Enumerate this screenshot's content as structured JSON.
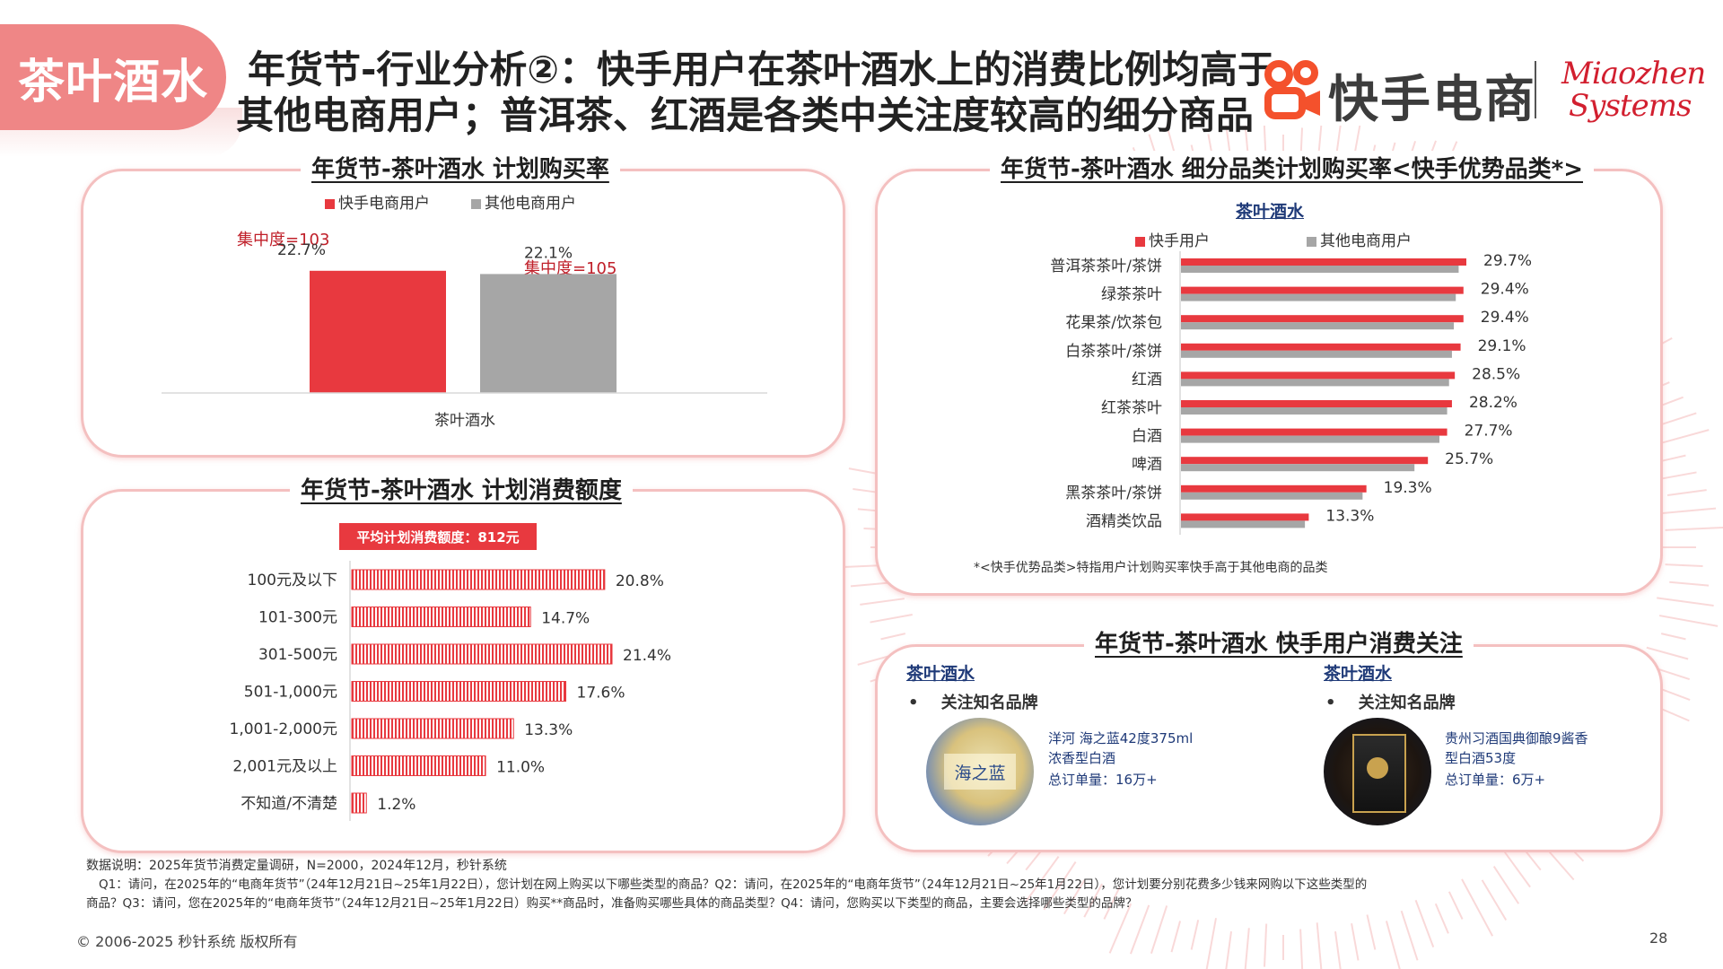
{
  "tag": "茶叶酒水",
  "title": {
    "line1": "年货节-行业分析②：快手用户在茶叶酒水上的消费比例均高于",
    "line2": "其他电商用户；普洱茶、红酒是各类中关注度较高的细分商品"
  },
  "logos": {
    "kuaishou": "快手电商",
    "miaozhen_line1": "Miaozhen",
    "miaozhen_line2": "Systems"
  },
  "panel1": {
    "title": "年货节-茶叶酒水 计划购买率",
    "legend": [
      "快手电商用户",
      "其他电商用户"
    ],
    "concentration_ks": "集中度=103",
    "concentration_other": "集中度=105"
  },
  "panel2": {
    "title": "年货节-茶叶酒水 计划消费额度",
    "avg_badge": "平均计划消费额度：812元"
  },
  "panel3": {
    "title": "年货节-茶叶酒水 细分品类计划购买率<快手优势品类*>",
    "subtitle": "茶叶酒水",
    "legend": [
      "快手用户",
      "其他电商用户"
    ],
    "footnote": "*<快手优势品类>特指用户计划购买率快手高于其他电商的品类"
  },
  "panel4": {
    "title": "年货节-茶叶酒水 快手用户消费关注",
    "left": {
      "category": "茶叶酒水",
      "bullet": "关注知名品牌",
      "product_line1": "洋河 海之蓝42度375ml",
      "product_line2": "浓香型白酒",
      "orders": "总订单量：16万+",
      "bottle_text": "海之蓝"
    },
    "right": {
      "category": "茶叶酒水",
      "bullet": "关注知名品牌",
      "product_line1": "贵州习酒国典御酿9酱香",
      "product_line2": "型白酒53度",
      "orders": "总订单量：6万+"
    }
  },
  "notes": {
    "line1": "数据说明：2025年货节消费定量调研，N=2000，2024年12月，秒针系统",
    "line2": "Q1：请问，在2025年的“电商年货节”（24年12月21日~25年1月22日），您计划在网上购买以下哪些类型的商品？Q2：请问，在2025年的“电商年货节”（24年12月21日~25年1月22日），您计划要分别花费多少钱来网购以下这些类型的",
    "line3": "商品？Q3：请问，您在2025年的“电商年货节”（24年12月21日~25年1月22日）购买**商品时，准备购买哪些具体的商品类型？Q4：请问，您购买以下类型的商品，主要会选择哪些类型的品牌？"
  },
  "footer": {
    "copyright": "© 2006-2025 秒针系统 版权所有",
    "page": "28"
  },
  "colors": {
    "red": "#e8393f",
    "gray": "#a6a6a6",
    "tag": "#ef8686",
    "border": "#f4c0c0"
  },
  "chart_data": [
    {
      "type": "bar",
      "title": "年货节-茶叶酒水 计划购买率",
      "categories": [
        "茶叶酒水"
      ],
      "series": [
        {
          "name": "快手电商用户",
          "values": [
            22.7
          ]
        },
        {
          "name": "其他电商用户",
          "values": [
            22.1
          ]
        }
      ],
      "value_labels": [
        "22.7%",
        "22.1%"
      ],
      "annotations": [
        "集中度=103",
        "集中度=105"
      ]
    },
    {
      "type": "bar",
      "title": "年货节-茶叶酒水 计划消费额度",
      "orientation": "horizontal",
      "categories": [
        "100元及以下",
        "101-300元",
        "301-500元",
        "501-1,000元",
        "1,001-2,000元",
        "2,001元及以上",
        "不知道/不清楚"
      ],
      "values": [
        20.8,
        14.7,
        21.4,
        17.6,
        13.3,
        11.0,
        1.2
      ],
      "value_labels": [
        "20.8%",
        "14.7%",
        "21.4%",
        "17.6%",
        "13.3%",
        "11.0%",
        "1.2%"
      ]
    },
    {
      "type": "bar",
      "title": "年货节-茶叶酒水 细分品类计划购买率<快手优势品类*>",
      "orientation": "horizontal",
      "categories": [
        "普洱茶茶叶/茶饼",
        "绿茶茶叶",
        "花果茶/饮茶包",
        "白茶茶叶/茶饼",
        "红酒",
        "红茶茶叶",
        "白酒",
        "啤酒",
        "黑茶茶叶/茶饼",
        "酒精类饮品"
      ],
      "series": [
        {
          "name": "快手用户",
          "values": [
            29.7,
            29.4,
            29.4,
            29.1,
            28.5,
            28.2,
            27.7,
            25.7,
            19.3,
            13.3
          ]
        },
        {
          "name": "其他电商用户",
          "values": [
            28.9,
            28.6,
            28.4,
            28.2,
            27.9,
            27.7,
            26.9,
            24.3,
            18.9,
            12.9
          ]
        }
      ],
      "value_labels": [
        "29.7%",
        "29.4%",
        "29.4%",
        "29.1%",
        "28.5%",
        "28.2%",
        "27.7%",
        "25.7%",
        "19.3%",
        "13.3%"
      ]
    }
  ]
}
